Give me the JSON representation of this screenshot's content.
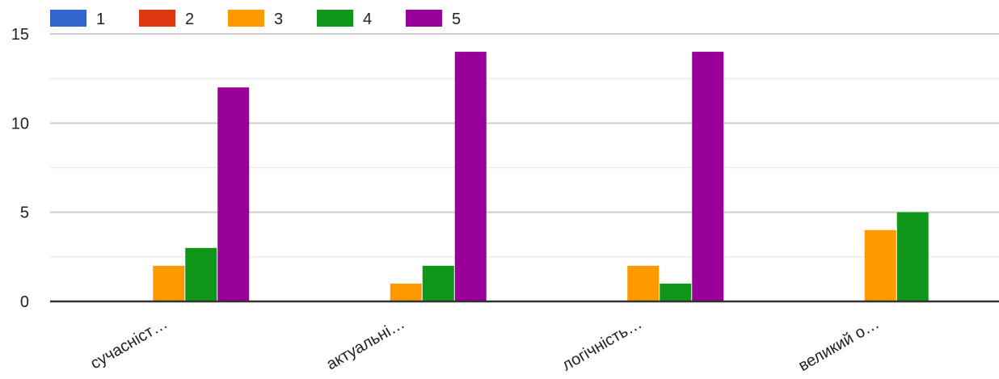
{
  "chart_data": {
    "type": "bar",
    "categories": [
      "сучасніст…",
      "актуальні…",
      "логічність…",
      "великий о…"
    ],
    "series": [
      {
        "name": "1",
        "color": "#3366cc",
        "values": [
          0,
          0,
          0,
          0
        ]
      },
      {
        "name": "2",
        "color": "#dc3912",
        "values": [
          0,
          0,
          0,
          0
        ]
      },
      {
        "name": "3",
        "color": "#ff9900",
        "values": [
          2,
          1,
          2,
          4
        ]
      },
      {
        "name": "4",
        "color": "#109618",
        "values": [
          3,
          2,
          1,
          5
        ]
      },
      {
        "name": "5",
        "color": "#990099",
        "values": [
          12,
          14,
          14,
          0
        ]
      }
    ],
    "yticks": [
      "0",
      "5",
      "10",
      "15"
    ],
    "ylim": [
      0,
      15
    ],
    "minor_grid_step": 2.5,
    "grid": true,
    "legend_position": "top-left",
    "title": "",
    "xlabel": "",
    "ylabel": ""
  }
}
